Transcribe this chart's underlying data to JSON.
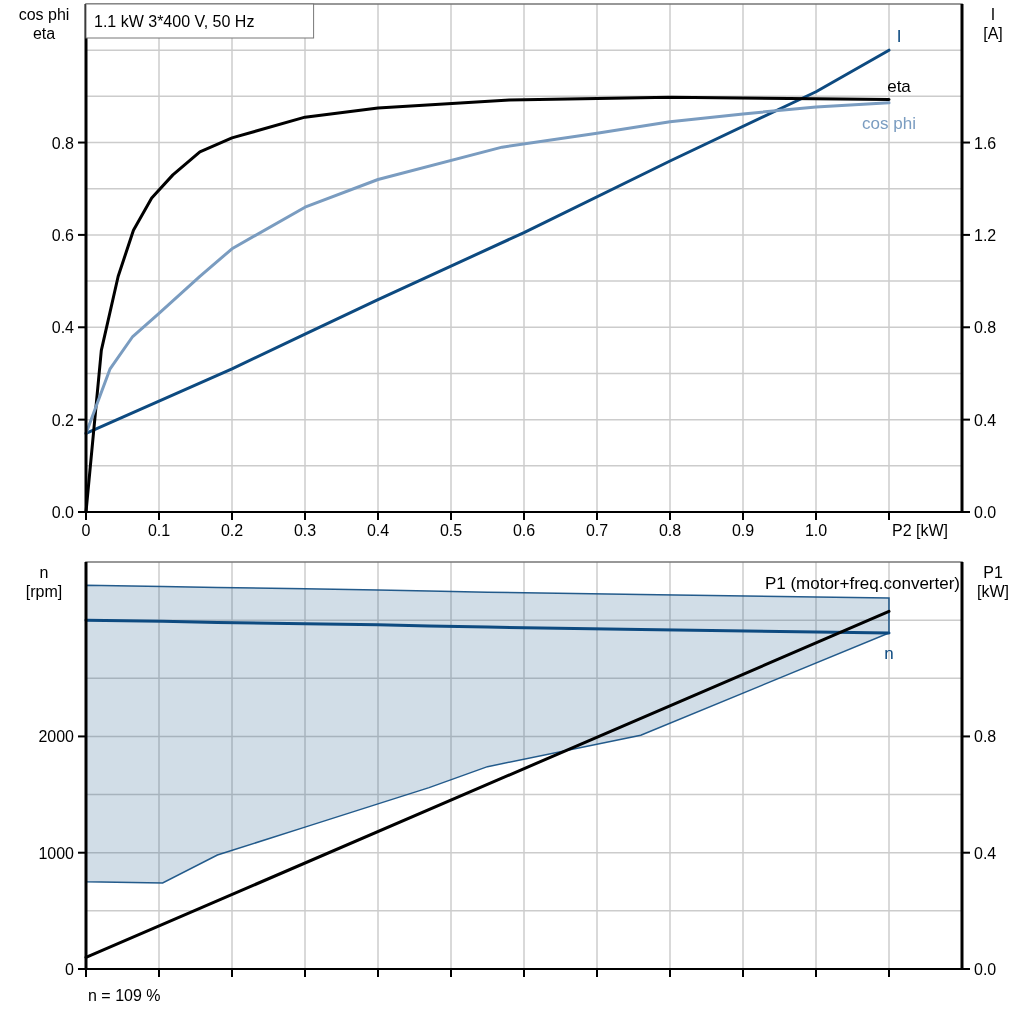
{
  "chart_data": [
    {
      "type": "line",
      "title": "1.1 kW   3*400 V, 50 Hz",
      "xlabel": "P2 [kW]",
      "ylabel": "cos phi\neta",
      "y2label": "I\n[A]",
      "xlim": [
        0,
        1.2
      ],
      "ylim": [
        0,
        1.1
      ],
      "y2lim": [
        0,
        2.2
      ],
      "xticks": [
        {
          "value": 0,
          "label": "0"
        },
        0.1,
        0.2,
        0.3,
        0.4,
        0.5,
        0.6,
        0.7,
        0.8,
        0.9,
        {
          "value": 1,
          "label": "1.0"
        },
        {
          "value": 1.1,
          "label": null
        }
      ],
      "yticks": [
        {
          "value": 0,
          "label": "0.0"
        },
        {
          "value": 0.1,
          "label": null
        },
        0.2,
        {
          "value": 0.3,
          "label": null
        },
        0.4,
        {
          "value": 0.5,
          "label": null
        },
        0.6,
        {
          "value": 0.7,
          "label": null
        },
        0.8,
        {
          "value": 0.9,
          "label": null
        },
        {
          "value": 1,
          "label": null
        }
      ],
      "y2ticks": [
        {
          "value": 0,
          "label": "0.0"
        },
        0.4,
        0.8,
        1.2,
        1.6
      ],
      "grid": true,
      "series": [
        {
          "name": "I",
          "color": "#0d4a80",
          "axis": "y2",
          "x": [
            0,
            0.2,
            0.3,
            0.4,
            0.6,
            0.8,
            1.0,
            1.1
          ],
          "values": [
            0.34,
            0.62,
            0.77,
            0.92,
            1.21,
            1.52,
            1.82,
            2.0
          ]
        },
        {
          "name": "eta",
          "color": "#000000",
          "x": [
            0,
            0.021,
            0.044,
            0.065,
            0.09,
            0.119,
            0.156,
            0.2,
            0.3,
            0.4,
            0.58,
            0.8,
            1.0,
            1.1
          ],
          "values": [
            0,
            0.35,
            0.51,
            0.61,
            0.68,
            0.73,
            0.78,
            0.81,
            0.855,
            0.875,
            0.892,
            0.898,
            0.895,
            0.893
          ]
        },
        {
          "name": "cos phi",
          "color": "#7a9cc0",
          "x": [
            0,
            0.033,
            0.064,
            0.1,
            0.156,
            0.2,
            0.3,
            0.4,
            0.57,
            0.7,
            0.8,
            0.9,
            1.0,
            1.1
          ],
          "values": [
            0.17,
            0.31,
            0.38,
            0.43,
            0.51,
            0.57,
            0.66,
            0.72,
            0.79,
            0.82,
            0.845,
            0.862,
            0.877,
            0.886
          ]
        }
      ]
    },
    {
      "type": "line",
      "ylabel": "n\n[rpm]",
      "y2label": "P1\n[kW]",
      "annotations": [
        "n = 109 %"
      ],
      "xlim": [
        0,
        1.2
      ],
      "ylim": [
        0,
        3500
      ],
      "y2lim": [
        0,
        1.4
      ],
      "tick_labels": "y",
      "xticks": [
        {
          "value": 0,
          "label": null
        },
        {
          "value": 0.1,
          "label": null
        },
        {
          "value": 0.2,
          "label": null
        },
        {
          "value": 0.3,
          "label": null
        },
        {
          "value": 0.4,
          "label": null
        },
        {
          "value": 0.5,
          "label": null
        },
        {
          "value": 0.6,
          "label": null
        },
        {
          "value": 0.7,
          "label": null
        },
        {
          "value": 0.8,
          "label": null
        },
        {
          "value": 0.9,
          "label": null
        },
        {
          "value": 1,
          "label": null
        },
        {
          "value": 1.1,
          "label": null
        }
      ],
      "yticks": [
        0,
        {
          "value": 500,
          "label": null
        },
        1000,
        {
          "value": 1500,
          "label": null
        },
        2000,
        {
          "value": 2500,
          "label": null
        },
        {
          "value": 3000,
          "label": null
        }
      ],
      "y2ticks": [
        {
          "value": 0,
          "label": "0.0"
        },
        0.4,
        0.8
      ],
      "grid": true,
      "series": [
        {
          "name": "n",
          "color": "#0d4a80",
          "x": [
            0,
            0.105,
            0.18,
            0.3,
            0.4,
            0.47,
            0.55,
            0.76,
            1.1
          ],
          "values": [
            3000,
            2990,
            2980,
            2970,
            2960,
            2950,
            2940,
            2920,
            2890
          ],
          "lower": [
            750,
            740,
            980,
            1220,
            1420,
            1560,
            1740,
            2010,
            2890
          ],
          "upper": [
            3300,
            3290,
            3280,
            3270,
            3260,
            3250,
            3240,
            3220,
            3190
          ]
        },
        {
          "name": "P1 (motor+freq.converter)",
          "color": "#000000",
          "axis": "y2",
          "x": [
            0,
            1.1
          ],
          "values": [
            0.04,
            1.23
          ]
        }
      ]
    }
  ]
}
